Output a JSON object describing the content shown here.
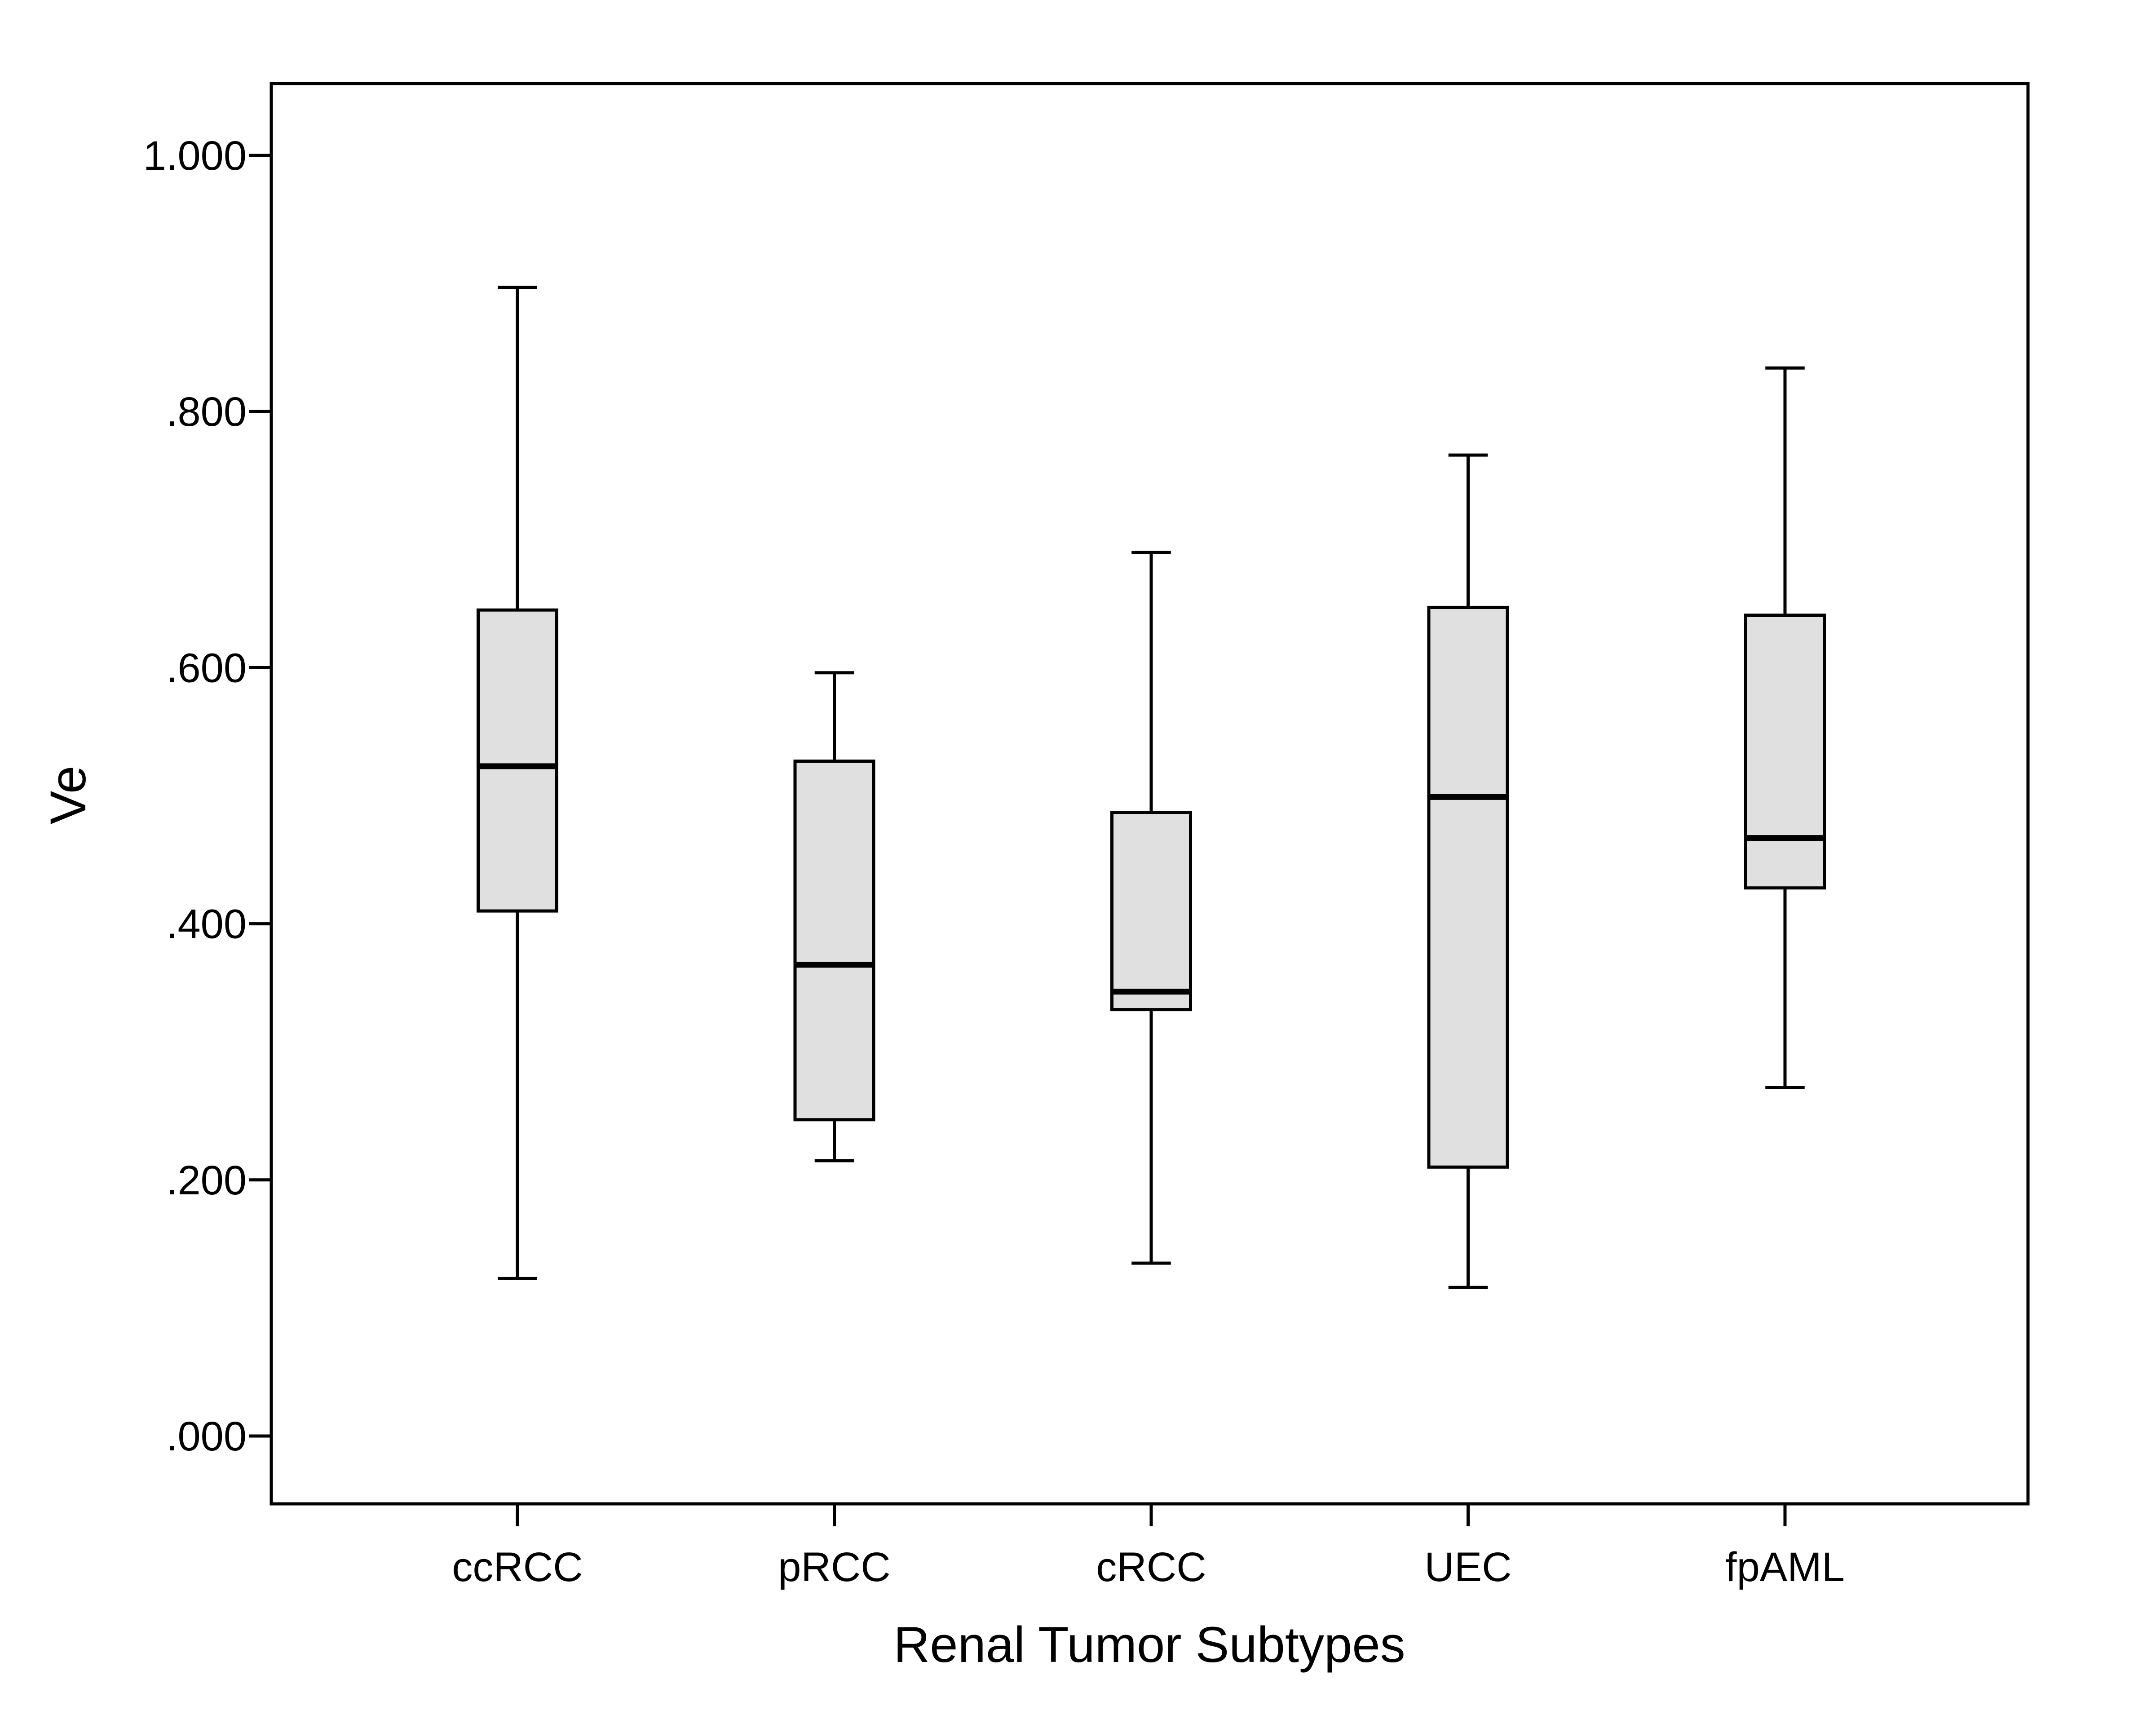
{
  "chart_data": {
    "type": "boxplot",
    "title": "",
    "xlabel": "Renal Tumor Subtypes",
    "ylabel": "Ve",
    "ylim": [
      -0.03,
      1.055
    ],
    "yticks": [
      0.0,
      0.2,
      0.4,
      0.6,
      0.8,
      1.0
    ],
    "ytick_labels": [
      ".000",
      ".200",
      ".400",
      ".600",
      ".800",
      "1.000"
    ],
    "categories": [
      "ccRCC",
      "pRCC",
      "cRCC",
      "UEC",
      "fpAML"
    ],
    "boxes": [
      {
        "category": "ccRCC",
        "min": 0.123,
        "q1": 0.41,
        "median": 0.523,
        "q3": 0.645,
        "max": 0.897
      },
      {
        "category": "pRCC",
        "min": 0.215,
        "q1": 0.247,
        "median": 0.368,
        "q3": 0.527,
        "max": 0.596
      },
      {
        "category": "cRCC",
        "min": 0.135,
        "q1": 0.333,
        "median": 0.347,
        "q3": 0.487,
        "max": 0.69
      },
      {
        "category": "UEC",
        "min": 0.116,
        "q1": 0.21,
        "median": 0.499,
        "q3": 0.647,
        "max": 0.766
      },
      {
        "category": "fpAML",
        "min": 0.272,
        "q1": 0.428,
        "median": 0.467,
        "q3": 0.641,
        "max": 0.834
      }
    ],
    "grid": false,
    "legend": "none",
    "colors": {
      "box_fill": "#e0e0e0",
      "stroke": "#000000",
      "background": "#ffffff"
    }
  }
}
